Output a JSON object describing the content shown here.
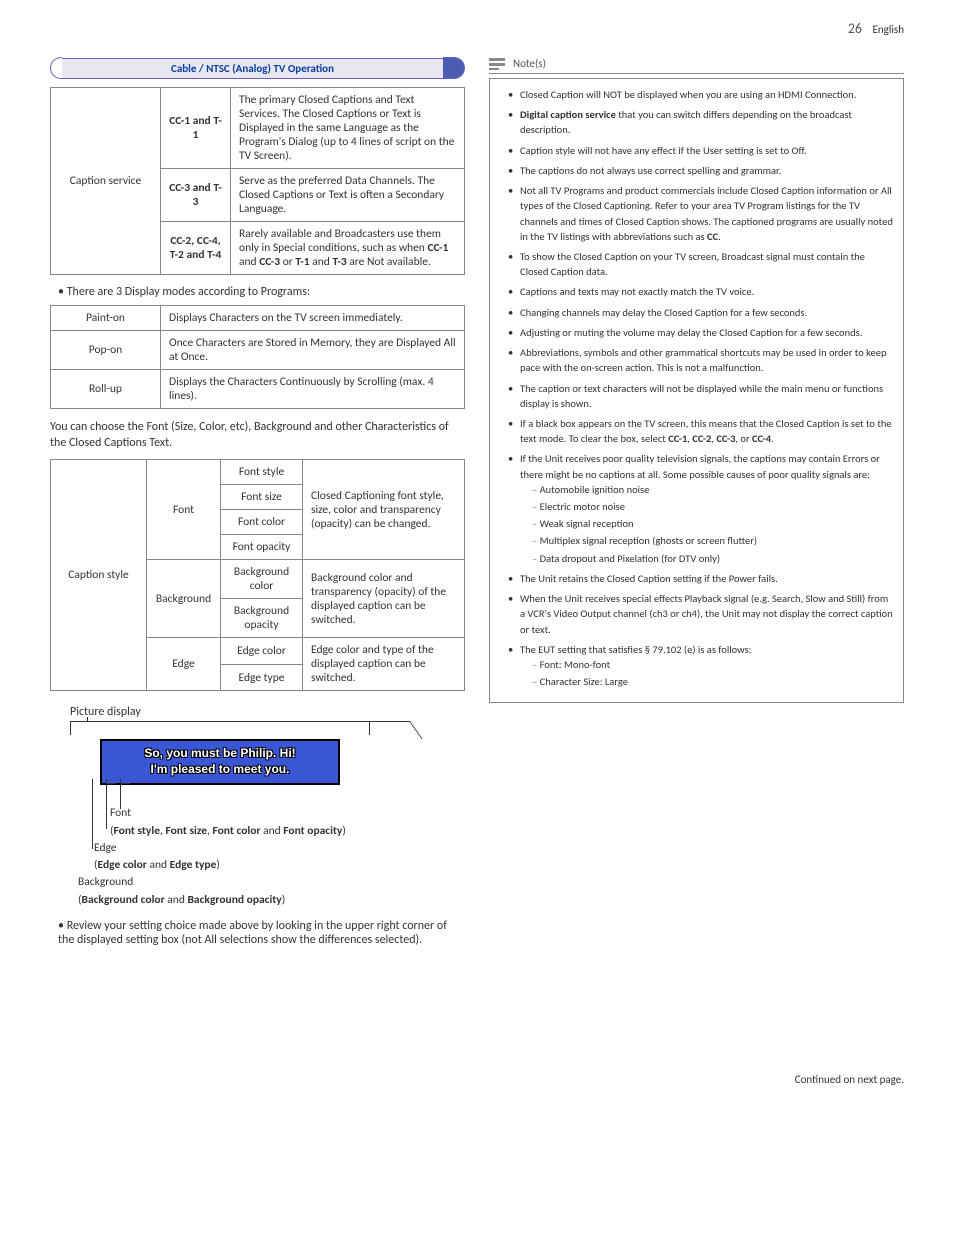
{
  "page": {
    "number": "26",
    "lang": "English",
    "footer": "Continued on next page."
  },
  "section_header": "Cable / NTSC (Analog) TV Operation",
  "caption_service_table": {
    "row_label": "Caption service",
    "rows": [
      {
        "mode": "CC-1 and T-1",
        "desc": "The primary Closed Captions and Text Services. The Closed Captions or Text is Displayed in the same Language as the Program's Dialog (up to 4 lines of script on the TV Screen)."
      },
      {
        "mode": "CC-3 and T-3",
        "desc": "Serve as the preferred Data Channels. The Closed Captions or Text is often a Secondary Language."
      },
      {
        "mode": "CC-2, CC-4, T-2 and T-4",
        "desc_html": "Rarely available and Broadcasters use them only in Special conditions, such as when <b>CC-1</b> and <b>CC-3</b> or <b>T-1</b> and <b>T-3</b> are Not available."
      }
    ]
  },
  "display_modes_intro": "There are 3 Display modes according to Programs:",
  "display_modes": [
    {
      "name": "Paint-on",
      "desc": "Displays Characters on the TV screen immediately."
    },
    {
      "name": "Pop-on",
      "desc": "Once Characters are Stored in Memory, they are Displayed All at Once."
    },
    {
      "name": "Roll-up",
      "desc": "Displays the Characters Continuously by Scrolling (max. 4 lines)."
    }
  ],
  "style_intro": "You can choose the Font (Size, Color, etc), Background and other Characteristics of the Closed Captions Text.",
  "caption_style_table": {
    "row_label": "Caption style",
    "groups": [
      {
        "group": "Font",
        "items": [
          "Font style",
          "Font size",
          "Font color",
          "Font opacity"
        ],
        "desc": "Closed Captioning font style, size, color and transparency (opacity) can be changed."
      },
      {
        "group": "Background",
        "items": [
          "Background color",
          "Background opacity"
        ],
        "desc": "Background color and transparency (opacity) of the displayed caption can be switched."
      },
      {
        "group": "Edge",
        "items": [
          "Edge color",
          "Edge type"
        ],
        "desc": "Edge color and type of the displayed caption can be switched."
      }
    ]
  },
  "diagram": {
    "title": "Picture display",
    "caption_line1": "So, you must be Philip. Hi!",
    "caption_line2": "I'm pleased to meet you.",
    "labels": {
      "font": "Font",
      "font_detail_html": "(<b>Font style</b>, <b>Font size</b>, <b>Font color</b> and <b>Font opacity</b>)",
      "edge": "Edge",
      "edge_detail_html": "(<b>Edge color</b> and <b>Edge type</b>)",
      "bg": "Background",
      "bg_detail_html": "(<b>Background color</b> and <b>Background opacity</b>)"
    }
  },
  "review_note": "Review your setting choice made above by looking in the upper right corner of the displayed setting box (not All selections show the differences selected).",
  "notes": {
    "header": "Note(s)",
    "items": [
      {
        "text": "Closed Caption will NOT be displayed when you are using an HDMI Connection."
      },
      {
        "html": "<b>Digital caption service</b> that you can switch differs depending on the broadcast description."
      },
      {
        "text": "Caption style will not have any effect if the User setting is set to Off."
      },
      {
        "text": "The captions do not always use correct spelling and grammar."
      },
      {
        "html": "Not all TV Programs and product commercials include Closed Caption information or All types of the Closed Captioning. Refer to your area TV Program listings for the TV channels and times of Closed Caption shows. The captioned programs are usually noted in the TV listings with abbreviations such as <b>CC</b>."
      },
      {
        "text": "To show the Closed Caption on your TV screen, Broadcast signal must contain the Closed Caption data."
      },
      {
        "text": "Captions and texts may not exactly match the TV voice."
      },
      {
        "text": "Changing channels may delay the Closed Caption for a few seconds."
      },
      {
        "text": "Adjusting or muting the volume may delay the Closed Caption for a few seconds."
      },
      {
        "text": "Abbreviations, symbols and other grammatical shortcuts may be used in order to keep pace with the on-screen action. This is not a malfunction."
      },
      {
        "text": "The caption or text characters will not be displayed while the main menu or functions display is shown."
      },
      {
        "html": "If a black box appears on the TV screen, this means that the Closed Caption is set to the text mode. To clear the box, select <b>CC-1</b>, <b>CC-2</b>, <b>CC-3</b>, or <b>CC-4</b>."
      },
      {
        "text": "If the Unit receives poor quality television signals, the captions may contain Errors or there might be no captions at all. Some possible causes of poor quality signals are:",
        "sub": [
          "Automobile ignition noise",
          "Electric motor noise",
          "Weak signal reception",
          "Multiplex signal reception (ghosts or screen flutter)",
          "Data dropout and Pixelation (for DTV only)"
        ]
      },
      {
        "text": "The Unit retains the Closed Caption setting if the Power fails."
      },
      {
        "text": "When the Unit receives special effects Playback signal (e.g. Search, Slow and Still) from a VCR's Video Output channel (ch3 or ch4), the Unit may not display the correct caption or text."
      },
      {
        "text": "The EUT setting that satisfies § 79.102 (e) is as follows:",
        "sub": [
          "Font: Mono-font",
          "Character Size: Large"
        ]
      }
    ]
  }
}
